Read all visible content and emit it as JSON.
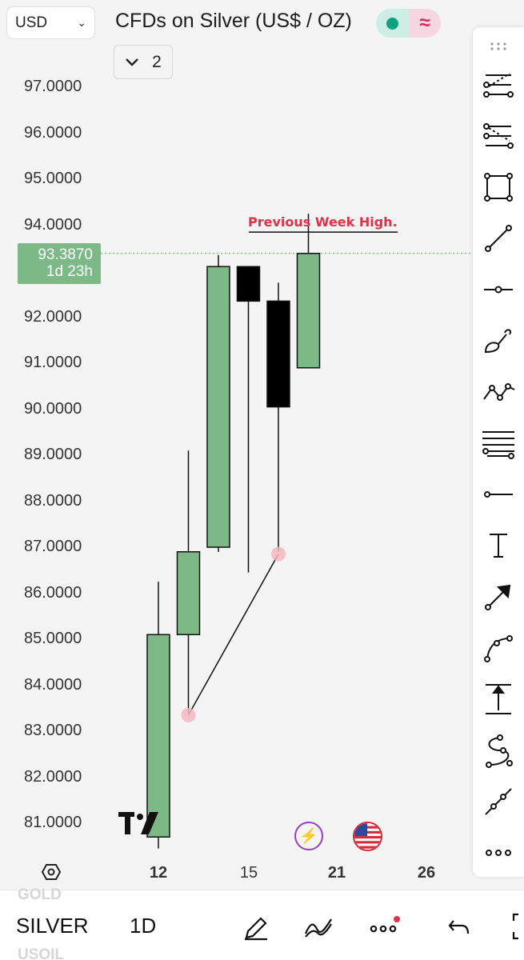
{
  "header": {
    "currency": "USD",
    "title": "CFDs on Silver (US$ / OZ)",
    "indicators_count": "2"
  },
  "price_axis": {
    "labels": [
      "97.0000",
      "96.0000",
      "95.0000",
      "94.0000",
      "92.0000",
      "91.0000",
      "90.0000",
      "89.0000",
      "88.0000",
      "87.0000",
      "86.0000",
      "85.0000",
      "84.0000",
      "83.0000",
      "82.0000",
      "81.0000"
    ],
    "current_price": "93.3870",
    "countdown": "1d 23h"
  },
  "time_axis": {
    "labels": [
      "12",
      "15",
      "21",
      "26"
    ]
  },
  "annotation": {
    "text": "Previous Week High."
  },
  "colors": {
    "bull": "#7db887",
    "bear": "#000000",
    "annotation": "#e0314b",
    "price_line": "#4caf50",
    "marker": "#f4b6be"
  },
  "chart_data": {
    "type": "candlestick",
    "title": "CFDs on Silver (US$ / OZ)",
    "interval": "1D",
    "ylim": [
      80.5,
      97.5
    ],
    "last_price": 93.387,
    "candles": [
      {
        "open": 80.7,
        "high": 86.25,
        "low": 80.45,
        "close": 85.1,
        "color": "bull"
      },
      {
        "open": 85.1,
        "high": 89.1,
        "low": 83.4,
        "close": 86.9,
        "color": "bull"
      },
      {
        "open": 87.0,
        "high": 93.35,
        "low": 86.9,
        "close": 93.1,
        "color": "bull"
      },
      {
        "open": 93.1,
        "high": 93.1,
        "low": 86.45,
        "close": 92.35,
        "color": "bear"
      },
      {
        "open": 92.35,
        "high": 92.75,
        "low": 86.9,
        "close": 90.05,
        "color": "bear"
      },
      {
        "open": 90.9,
        "high": 94.25,
        "low": 90.9,
        "close": 93.387,
        "color": "bull"
      }
    ],
    "drawings": [
      {
        "type": "trendline",
        "from_price": 83.35,
        "to_price": 86.85
      },
      {
        "type": "horizontal_ray",
        "price": 93.85,
        "label": "Previous Week High."
      }
    ]
  },
  "toolbar": {
    "tools": [
      "grip-icon",
      "fib-retracement-icon",
      "fib-extension-icon",
      "rectangle-icon",
      "trend-line-icon",
      "horizontal-line-icon",
      "brush-icon",
      "path-icon",
      "parallel-channel-icon",
      "horizontal-ray-icon",
      "text-icon",
      "arrow-icon",
      "curve-icon",
      "price-range-icon",
      "polyline-icon",
      "extended-line-icon",
      "more-tools-icon"
    ]
  },
  "bottom_bar": {
    "prev_symbol": "GOLD",
    "symbol": "SILVER",
    "next_symbol": "USOIL",
    "interval": "1D"
  }
}
